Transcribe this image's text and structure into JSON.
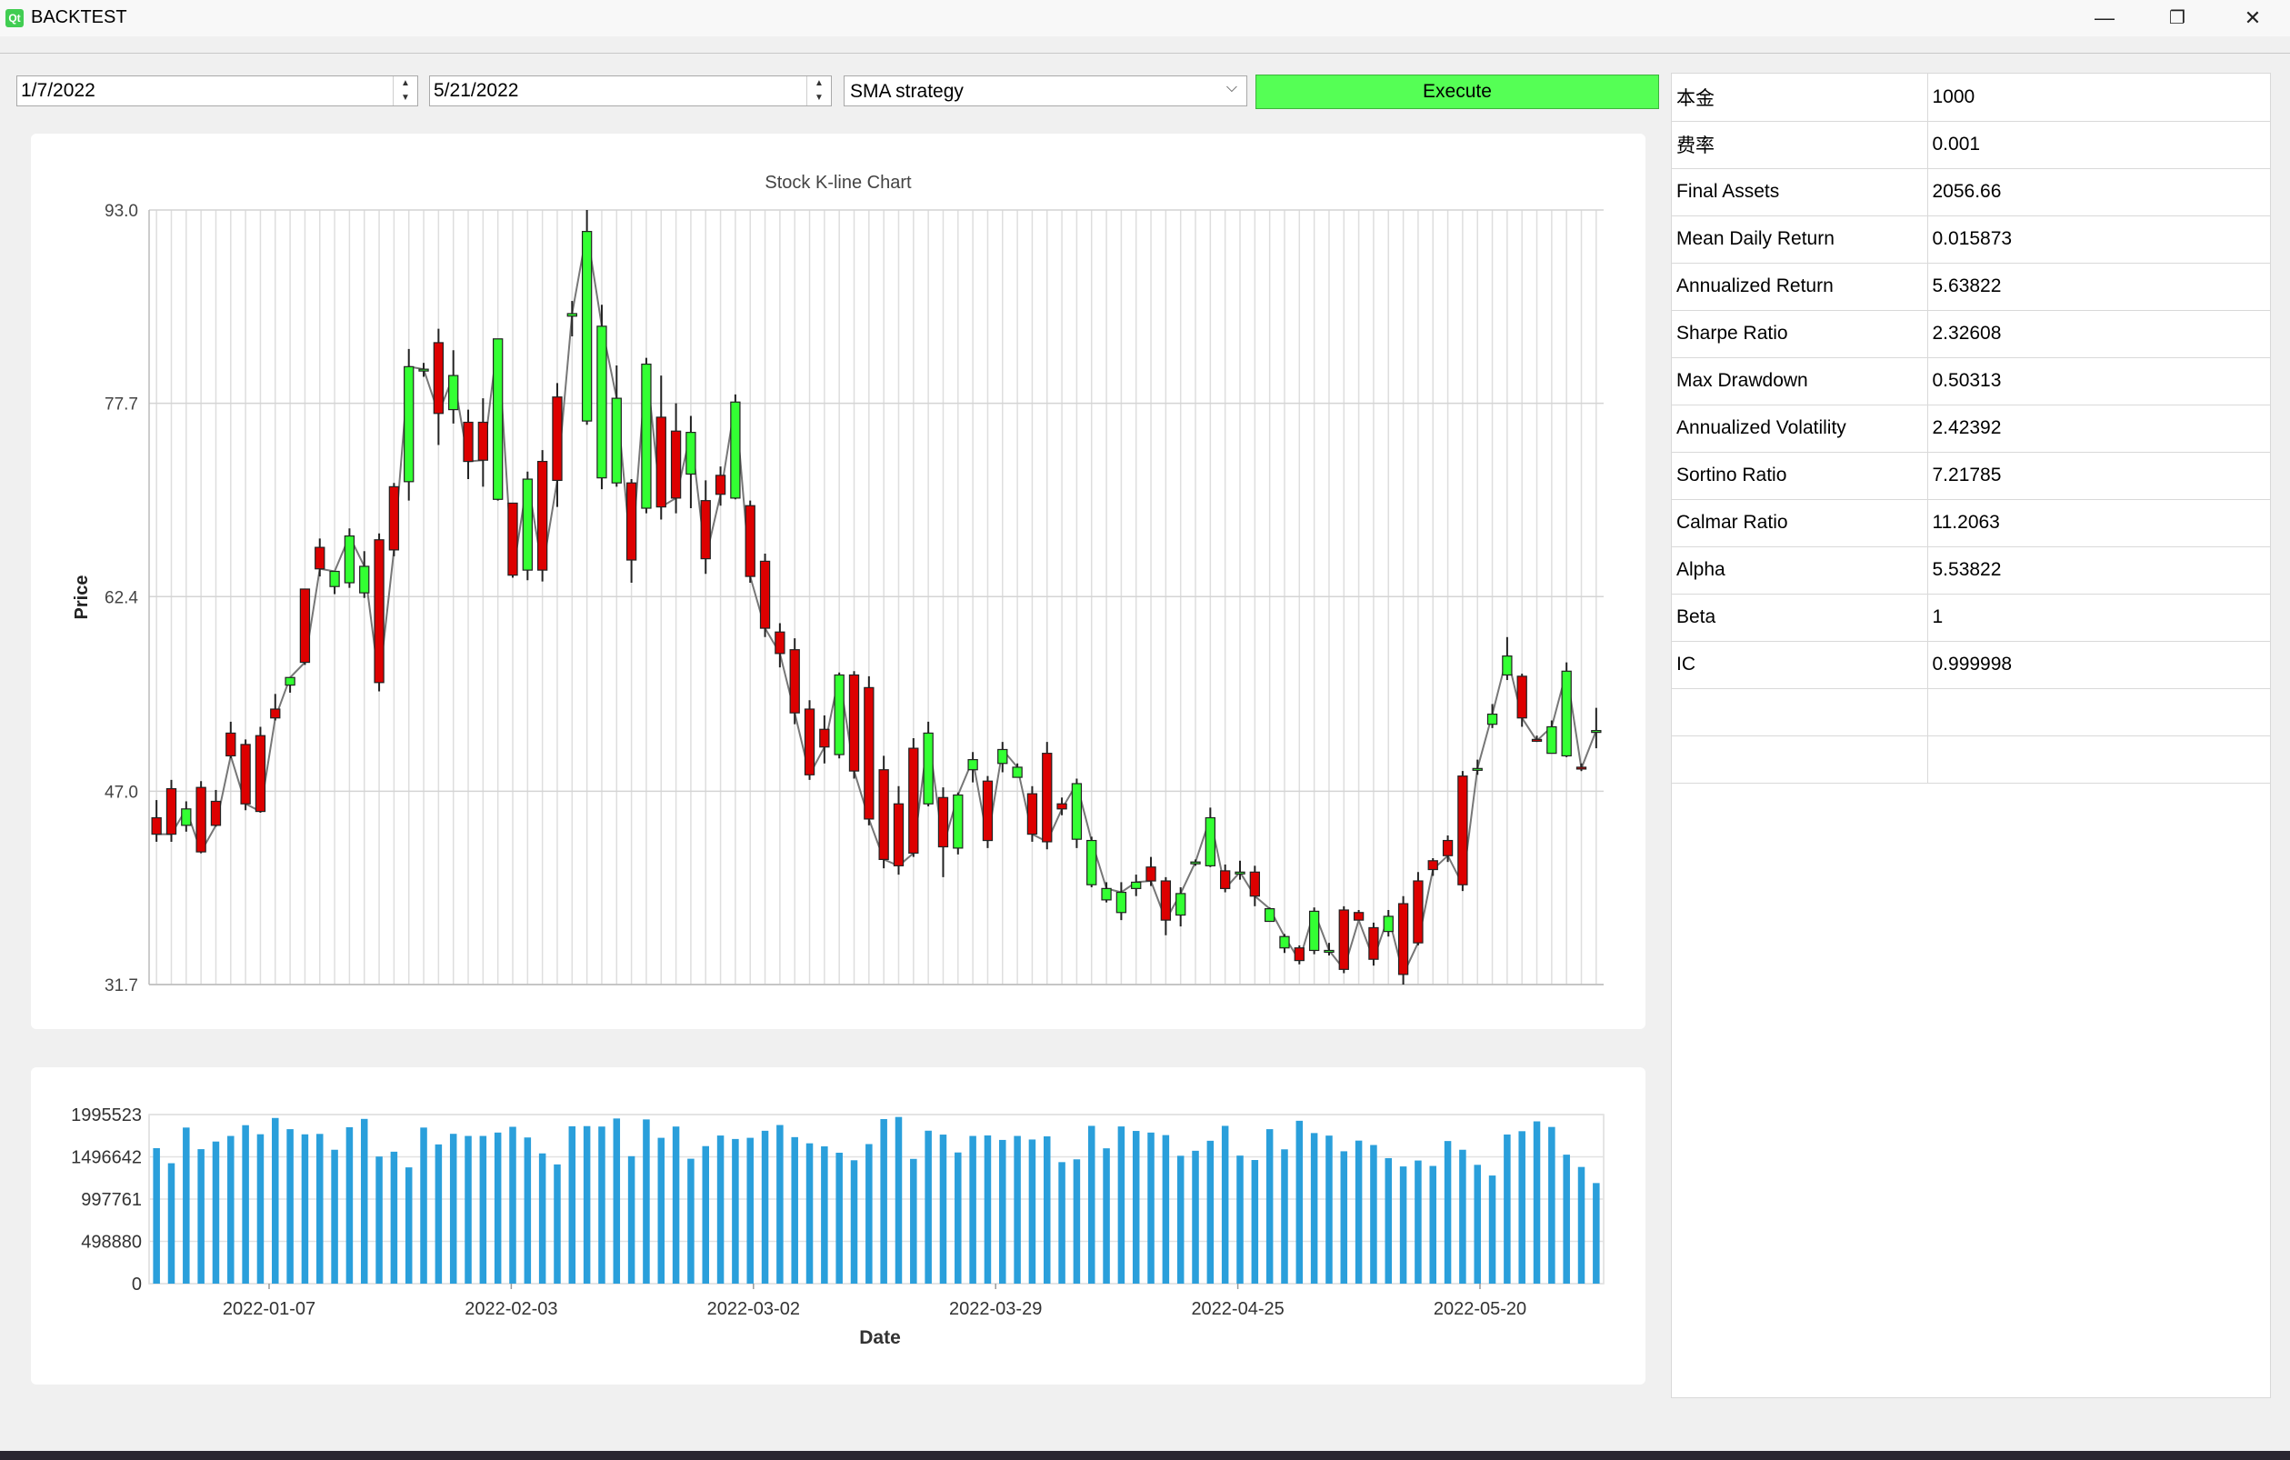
{
  "window": {
    "title": "BACKTEST",
    "icon_text": "Qt",
    "minimize_glyph": "—",
    "restore_glyph": "❐",
    "close_glyph": "✕"
  },
  "controls": {
    "start_date": "1/7/2022",
    "end_date": "5/21/2022",
    "strategy": "SMA strategy",
    "execute_label": "Execute"
  },
  "colors": {
    "up": "#33ff33",
    "down": "#dd0000",
    "volume": "#2a9fdb",
    "execute": "#55ff55"
  },
  "chart_data": [
    {
      "type": "candlestick",
      "title": "Stock K-line Chart",
      "ylabel": "Price",
      "ylim": [
        31.7,
        93.0
      ],
      "yticks": [
        "93.0",
        "77.7",
        "62.4",
        "47.0",
        "31.7"
      ],
      "candles": [
        [
          44.9,
          43.6,
          46.3,
          43
        ],
        [
          47.2,
          43.6,
          47.9,
          43
        ],
        [
          44.3,
          45.6,
          46.2,
          43.8
        ],
        [
          47.3,
          42.2,
          47.8,
          42.1
        ],
        [
          46.2,
          44.3,
          47.1,
          44.2
        ],
        [
          51.6,
          49.8,
          52.5,
          49.6
        ],
        [
          50.7,
          46,
          51.1,
          45.5
        ],
        [
          51.4,
          45.4,
          52.1,
          45.3
        ],
        [
          53.5,
          52.8,
          54.7,
          52.6
        ],
        [
          55.4,
          56,
          55.5,
          54.8
        ],
        [
          63,
          57.2,
          63,
          57
        ],
        [
          66.3,
          64.6,
          67,
          64
        ],
        [
          63.2,
          64.4,
          64.4,
          62.6
        ],
        [
          63.5,
          67.2,
          67.8,
          63.1
        ],
        [
          62.7,
          64.8,
          66,
          62.3
        ],
        [
          66.9,
          55.6,
          67.4,
          54.9
        ],
        [
          71.1,
          66.1,
          71.4,
          65.6
        ],
        [
          71.5,
          80.6,
          82,
          70
        ],
        [
          80.3,
          80.4,
          80.9,
          79.8
        ],
        [
          82.5,
          76.9,
          83.6,
          74.4
        ],
        [
          77.2,
          79.9,
          81.9,
          76.1
        ],
        [
          76.2,
          73.1,
          77.2,
          71.7
        ],
        [
          76.2,
          73.2,
          78.1,
          71.1
        ],
        [
          70.1,
          82.8,
          82.8,
          70
        ],
        [
          69.8,
          64.1,
          69.8,
          63.9
        ],
        [
          64.5,
          71.7,
          72.3,
          63.7
        ],
        [
          73.1,
          64.5,
          74,
          63.6
        ],
        [
          78.2,
          71.6,
          79.3,
          69.5
        ],
        [
          84.6,
          84.8,
          85.8,
          83
        ],
        [
          76.3,
          91.3,
          93,
          76
        ],
        [
          71.8,
          83.8,
          85.5,
          70.9
        ],
        [
          71.4,
          78.1,
          80.7,
          71.1
        ],
        [
          71.4,
          65.3,
          71.7,
          63.5
        ],
        [
          69.4,
          80.8,
          81.3,
          69
        ],
        [
          76.6,
          69.5,
          79.9,
          68.5
        ],
        [
          75.5,
          70.2,
          77.7,
          69
        ],
        [
          72.1,
          75.4,
          76.7,
          69.4
        ],
        [
          70,
          65.4,
          71.6,
          64.2
        ],
        [
          72,
          70.5,
          72.7,
          69.6
        ],
        [
          70.2,
          77.8,
          78.4,
          70.1
        ],
        [
          69.6,
          64,
          70,
          63.5
        ],
        [
          65.2,
          59.9,
          65.8,
          59.2
        ],
        [
          59.6,
          57.9,
          60.3,
          56.8
        ],
        [
          58.2,
          53.2,
          59.1,
          52.3
        ],
        [
          53.5,
          48.3,
          54.2,
          47.9
        ],
        [
          51.9,
          50.5,
          53,
          49.2
        ],
        [
          49.9,
          56.2,
          56.4,
          49.6
        ],
        [
          56.2,
          48.6,
          56.5,
          48
        ],
        [
          55.2,
          44.8,
          56.1,
          44.3
        ],
        [
          48.7,
          41.6,
          49.8,
          40.9
        ],
        [
          46,
          41.1,
          47.4,
          40.4
        ],
        [
          50.4,
          42.1,
          51.2,
          41.8
        ],
        [
          46,
          51.6,
          52.5,
          45.8
        ],
        [
          46.5,
          42.6,
          47.3,
          40.2
        ],
        [
          42.5,
          46.7,
          46.9,
          42
        ],
        [
          48.7,
          49.5,
          50.1,
          47.7
        ],
        [
          47.8,
          43.1,
          48.2,
          42.5
        ],
        [
          49.2,
          50.3,
          50.9,
          48.5
        ],
        [
          48.1,
          48.9,
          49.2,
          48.2
        ],
        [
          46.8,
          43.6,
          47.4,
          43
        ],
        [
          50,
          43,
          50.9,
          42.4
        ],
        [
          46,
          45.6,
          46.5,
          45.1
        ],
        [
          43.2,
          47.6,
          48,
          42.5
        ],
        [
          39.6,
          43.1,
          43.4,
          39.4
        ],
        [
          38.4,
          39.3,
          39.8,
          38.2
        ],
        [
          37.4,
          39,
          39.8,
          36.8
        ],
        [
          39.3,
          39.8,
          40.4,
          38.7
        ],
        [
          41,
          39.9,
          41.8,
          39.5
        ],
        [
          39.9,
          36.8,
          40.2,
          35.6
        ],
        [
          37.2,
          38.9,
          39.4,
          36.3
        ],
        [
          41.4,
          41.4,
          41.6,
          41.1
        ],
        [
          41.1,
          44.9,
          45.7,
          41
        ],
        [
          40.7,
          39.3,
          41.2,
          39
        ],
        [
          40.6,
          40.6,
          41.5,
          40
        ],
        [
          40.6,
          38.7,
          41.1,
          37.9
        ],
        [
          36.7,
          37.7,
          37.8,
          36.8
        ],
        [
          34.6,
          35.5,
          35.7,
          34.2
        ],
        [
          34.6,
          33.6,
          34.8,
          33.3
        ],
        [
          34.4,
          37.5,
          37.8,
          34.1
        ],
        [
          34.4,
          34.4,
          35,
          34
        ],
        [
          37.6,
          32.9,
          37.9,
          32.6
        ],
        [
          37.4,
          36.8,
          37.6,
          36.8
        ],
        [
          36.2,
          33.7,
          36.6,
          33.2
        ],
        [
          35.9,
          37.1,
          37.6,
          35.5
        ],
        [
          38.1,
          32.5,
          38.7,
          31.7
        ],
        [
          39.9,
          35,
          40.6,
          34.8
        ],
        [
          41.5,
          40.8,
          41.7,
          40.3
        ],
        [
          43.1,
          41.9,
          43.5,
          41.4
        ],
        [
          48.2,
          39.6,
          48.6,
          39.1
        ],
        [
          48.8,
          48.8,
          49.5,
          48.3
        ],
        [
          52.3,
          53.1,
          53.9,
          52
        ],
        [
          56.2,
          57.7,
          59.2,
          55.8
        ],
        [
          56.1,
          52.8,
          56.3,
          52.1
        ],
        [
          51.1,
          51,
          51.4,
          50.9
        ],
        [
          50,
          52.1,
          52.6,
          50.1
        ],
        [
          49.8,
          56.5,
          57.2,
          49.7
        ],
        [
          48.9,
          48.8,
          49.2,
          48.6
        ],
        [
          51.8,
          51.8,
          53.6,
          50.4
        ]
      ]
    },
    {
      "type": "bar",
      "xlabel": "Date",
      "ylim": [
        0,
        1995523
      ],
      "yticks": [
        "1995523",
        "1496642",
        "997761",
        "498880",
        "0"
      ],
      "date_ticks": [
        "2022-01-07",
        "2022-02-03",
        "2022-03-02",
        "2022-03-29",
        "2022-04-25",
        "2022-05-20"
      ],
      "values": [
        1599000,
        1421000,
        1842000,
        1587000,
        1677000,
        1743000,
        1870000,
        1763000,
        1955000,
        1823000,
        1762000,
        1767000,
        1580000,
        1846000,
        1944000,
        1500000,
        1557000,
        1372000,
        1842000,
        1643000,
        1768000,
        1743000,
        1743000,
        1783000,
        1851000,
        1725000,
        1537000,
        1407000,
        1857000,
        1859000,
        1854000,
        1949000,
        1504000,
        1938000,
        1721000,
        1854000,
        1474000,
        1623000,
        1748000,
        1707000,
        1721000,
        1804000,
        1872000,
        1729000,
        1656000,
        1620000,
        1545000,
        1456000,
        1647000,
        1942000,
        1967000,
        1472000,
        1805000,
        1759000,
        1548000,
        1743000,
        1749000,
        1696000,
        1743000,
        1701000,
        1738000,
        1434000,
        1467000,
        1862000,
        1597000,
        1855000,
        1802000,
        1783000,
        1753000,
        1509000,
        1568000,
        1686000,
        1862000,
        1511000,
        1459000,
        1823000,
        1585000,
        1922000,
        1777000,
        1747000,
        1562000,
        1688000,
        1636000,
        1481000,
        1383000,
        1453000,
        1389000,
        1683000,
        1580000,
        1402000,
        1276000,
        1760000,
        1799000,
        1915000,
        1849000,
        1522000,
        1377000,
        1187000
      ]
    }
  ],
  "metrics": [
    {
      "label": "本金",
      "value": "1000"
    },
    {
      "label": "费率",
      "value": "0.001"
    },
    {
      "label": "Final Assets",
      "value": "2056.66"
    },
    {
      "label": "Mean Daily Return",
      "value": "0.015873"
    },
    {
      "label": "Annualized Return",
      "value": "5.63822"
    },
    {
      "label": "Sharpe Ratio",
      "value": "2.32608"
    },
    {
      "label": "Max Drawdown",
      "value": "0.50313"
    },
    {
      "label": "Annualized Volatility",
      "value": "2.42392"
    },
    {
      "label": "Sortino Ratio",
      "value": "7.21785"
    },
    {
      "label": "Calmar Ratio",
      "value": "11.2063"
    },
    {
      "label": "Alpha",
      "value": "5.53822"
    },
    {
      "label": "Beta",
      "value": "1"
    },
    {
      "label": "IC",
      "value": "0.999998"
    },
    {
      "label": "",
      "value": ""
    },
    {
      "label": "",
      "value": ""
    }
  ]
}
